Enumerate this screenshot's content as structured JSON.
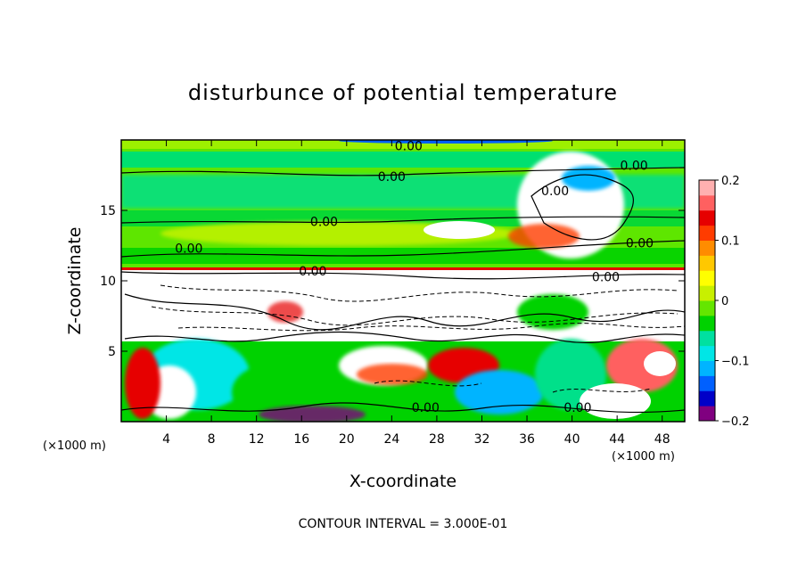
{
  "chart_data": {
    "type": "heatmap",
    "title": "disturbunce of potential temperature",
    "xlabel": "X-coordinate",
    "ylabel": "Z-coordinate",
    "x_unit": "(×1000 m)",
    "y_unit": "(×1000 m)",
    "xlim": [
      0,
      50
    ],
    "ylim": [
      0,
      20
    ],
    "x_ticks": [
      4,
      8,
      12,
      16,
      20,
      24,
      28,
      32,
      36,
      40,
      44,
      48
    ],
    "y_ticks": [
      5,
      10,
      15
    ],
    "colorbar": {
      "range": [
        -0.2,
        0.2
      ],
      "tick_values": [
        0.2,
        0.1,
        0,
        -0.1,
        -0.2
      ],
      "tick_labels": [
        "0.2",
        "0.1",
        "0",
        "−0.1",
        "−0.2"
      ],
      "colors": [
        "#800080",
        "#0000c8",
        "#0060ff",
        "#00b4ff",
        "#00e6e6",
        "#00e0a0",
        "#00d200",
        "#64e600",
        "#c8f000",
        "#ffff00",
        "#ffc800",
        "#ff8c00",
        "#ff3c00",
        "#e60000",
        "#ff6060",
        "#ffb0b0"
      ]
    },
    "contour_labels": [
      {
        "text": "0.00",
        "x": 25.5,
        "y": 19.6
      },
      {
        "text": "0.00",
        "x": 24.0,
        "y": 17.4
      },
      {
        "text": "0.00",
        "x": 18.0,
        "y": 14.2
      },
      {
        "text": "0.00",
        "x": 6.0,
        "y": 12.3
      },
      {
        "text": "0.00",
        "x": 46.0,
        "y": 12.7
      },
      {
        "text": "0.00",
        "x": 45.5,
        "y": 18.2
      },
      {
        "text": "0.00",
        "x": 38.5,
        "y": 16.4
      },
      {
        "text": "0.00",
        "x": 43.0,
        "y": 10.3
      },
      {
        "text": "0.00",
        "x": 17.0,
        "y": 10.7
      },
      {
        "text": "0.00",
        "x": 27.0,
        "y": 1.0
      },
      {
        "text": "0.00",
        "x": 40.5,
        "y": 1.0
      }
    ],
    "contour_interval": "CONTOUR INTERVAL = 3.000E-01"
  }
}
